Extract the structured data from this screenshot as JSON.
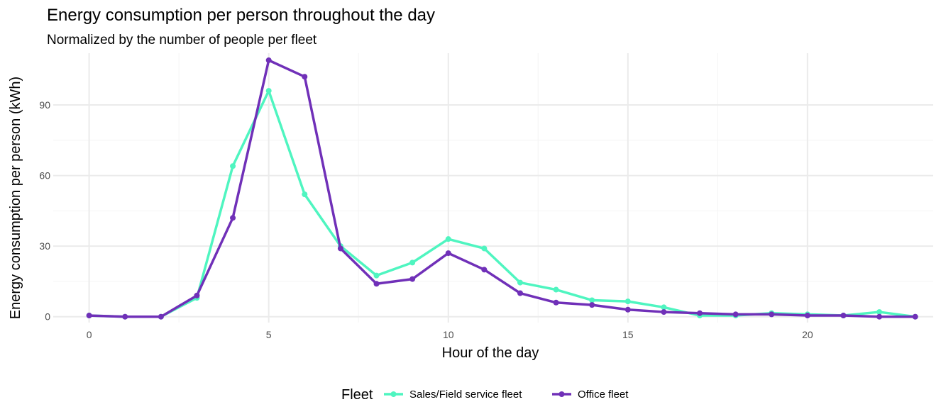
{
  "chart_data": {
    "type": "line",
    "title": "Energy consumption per person throughout the day",
    "subtitle": "Normalized by the number of people per fleet",
    "xlabel": "Hour of the day",
    "ylabel": "Energy consumption per person (kWh)",
    "xlim": [
      -1,
      23.5
    ],
    "ylim": [
      -2.5,
      112
    ],
    "xticks": [
      0,
      5,
      10,
      15,
      20
    ],
    "yticks": [
      0,
      30,
      60,
      90
    ],
    "grid": true,
    "legend_title": "Fleet",
    "legend_position": "bottom",
    "x": [
      0,
      1,
      2,
      3,
      4,
      5,
      6,
      7,
      8,
      9,
      10,
      11,
      12,
      13,
      14,
      15,
      16,
      17,
      18,
      19,
      20,
      21,
      22,
      23
    ],
    "series": [
      {
        "name": "Sales/Field service fleet",
        "color": "#4ff5c0",
        "values": [
          0.5,
          0,
          0,
          8,
          64,
          96,
          52,
          30,
          17.5,
          23,
          33,
          29,
          14.5,
          11.5,
          7,
          6.5,
          4,
          0.5,
          0.5,
          1.5,
          1,
          0.5,
          2,
          0
        ]
      },
      {
        "name": "Office fleet",
        "color": "#7030b8",
        "values": [
          0.5,
          0,
          0,
          9,
          42,
          109,
          102,
          29,
          14,
          16,
          27,
          20,
          10,
          6,
          5,
          3,
          2,
          1.5,
          1,
          1,
          0.5,
          0.5,
          0,
          0
        ]
      }
    ]
  }
}
